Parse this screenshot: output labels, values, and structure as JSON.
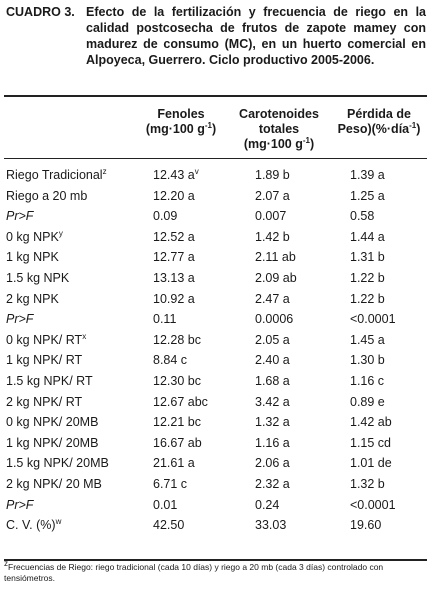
{
  "caption": {
    "label": "CUADRO 3.",
    "text": "Efecto de la fertilización y frecuencia de riego en la calidad postcosecha de frutos de zapote mamey con madurez de consumo (MC), en un huerto comercial en Alpoyeca, Guerrero. Ciclo productivo 2005-2006."
  },
  "headers": {
    "fenoles_line1": "Fenoles",
    "fenoles_line2": "(mg·100 g",
    "fenoles_exp": "-1",
    "fenoles_close": ")",
    "carot_line1": "Carotenoides",
    "carot_line2": "totales",
    "carot_line3": "(mg·100 g",
    "carot_exp": "-1",
    "carot_close": ")",
    "perdida_line1": "Pérdida de",
    "perdida_line2": "Peso)(%·día",
    "perdida_exp": "-1",
    "perdida_close": ")"
  },
  "rows": [
    {
      "label": "Riego Tradicional",
      "sup": "z",
      "italic": false,
      "fenoles": "12.43 a",
      "fen_sup": "v",
      "carot": "1.89 b",
      "perdida": "1.39 a"
    },
    {
      "label": "Riego a 20 mb",
      "sup": "",
      "italic": false,
      "fenoles": "12.20 a",
      "fen_sup": "",
      "carot": "2.07 a",
      "perdida": "1.25 a"
    },
    {
      "label": "Pr>F",
      "sup": "",
      "italic": true,
      "fenoles": "0.09",
      "fen_sup": "",
      "carot": "0.007",
      "perdida": "0.58"
    },
    {
      "label": "0 kg NPK",
      "sup": "y",
      "italic": false,
      "fenoles": "12.52 a",
      "fen_sup": "",
      "carot": "1.42 b",
      "perdida": "1.44 a"
    },
    {
      "label": "1 kg NPK",
      "sup": "",
      "italic": false,
      "fenoles": "12.77 a",
      "fen_sup": "",
      "carot": "2.11 ab",
      "perdida": "1.31 b"
    },
    {
      "label": "1.5 kg NPK",
      "sup": "",
      "italic": false,
      "fenoles": "13.13 a",
      "fen_sup": "",
      "carot": "2.09 ab",
      "perdida": "1.22 b"
    },
    {
      "label": "2 kg NPK",
      "sup": "",
      "italic": false,
      "fenoles": "10.92 a",
      "fen_sup": "",
      "carot": "2.47 a",
      "perdida": "1.22 b"
    },
    {
      "label": "Pr>F",
      "sup": "",
      "italic": true,
      "fenoles": "0.11",
      "fen_sup": "",
      "carot": "0.0006",
      "perdida": "<0.0001"
    },
    {
      "label": "0 kg NPK/ RT",
      "sup": "x",
      "italic": false,
      "fenoles": "12.28 bc",
      "fen_sup": "",
      "carot": "2.05 a",
      "perdida": "1.45 a"
    },
    {
      "label": "1 kg NPK/ RT",
      "sup": "",
      "italic": false,
      "fenoles": "8.84 c",
      "fen_sup": "",
      "carot": "2.40 a",
      "perdida": "1.30 b"
    },
    {
      "label": "1.5 kg NPK/ RT",
      "sup": "",
      "italic": false,
      "fenoles": "12.30 bc",
      "fen_sup": "",
      "carot": "1.68 a",
      "perdida": "1.16 c"
    },
    {
      "label": "2 kg NPK/ RT",
      "sup": "",
      "italic": false,
      "fenoles": "12.67 abc",
      "fen_sup": "",
      "carot": "3.42 a",
      "perdida": "0.89 e"
    },
    {
      "label": "0 kg NPK/ 20MB",
      "sup": "",
      "italic": false,
      "fenoles": "12.21 bc",
      "fen_sup": "",
      "carot": "1.32 a",
      "perdida": "1.42 ab"
    },
    {
      "label": "1 kg NPK/ 20MB",
      "sup": "",
      "italic": false,
      "fenoles": "16.67 ab",
      "fen_sup": "",
      "carot": "1.16 a",
      "perdida": "1.15 cd"
    },
    {
      "label": "1.5 kg NPK/ 20MB",
      "sup": "",
      "italic": false,
      "fenoles": "21.61 a",
      "fen_sup": "",
      "carot": "2.06 a",
      "perdida": "1.01  de"
    },
    {
      "label": "2 kg NPK/ 20 MB",
      "sup": "",
      "italic": false,
      "fenoles": "6.71 c",
      "fen_sup": "",
      "carot": "2.32 a",
      "perdida": "1.32 b"
    },
    {
      "label": "Pr>F",
      "sup": "",
      "italic": true,
      "fenoles": "0.01",
      "fen_sup": "",
      "carot": "0.24",
      "perdida": "<0.0001"
    },
    {
      "label": "C. V. (%)",
      "sup": "w",
      "italic": false,
      "fenoles": "42.50",
      "fen_sup": "",
      "carot": "33.03",
      "perdida": "19.60"
    }
  ],
  "footnote": {
    "sup": "z",
    "text": "Frecuencias de Riego: riego tradicional (cada 10 días) y riego a 20 mb (cada 3 días) controlado con tensiómetros."
  }
}
